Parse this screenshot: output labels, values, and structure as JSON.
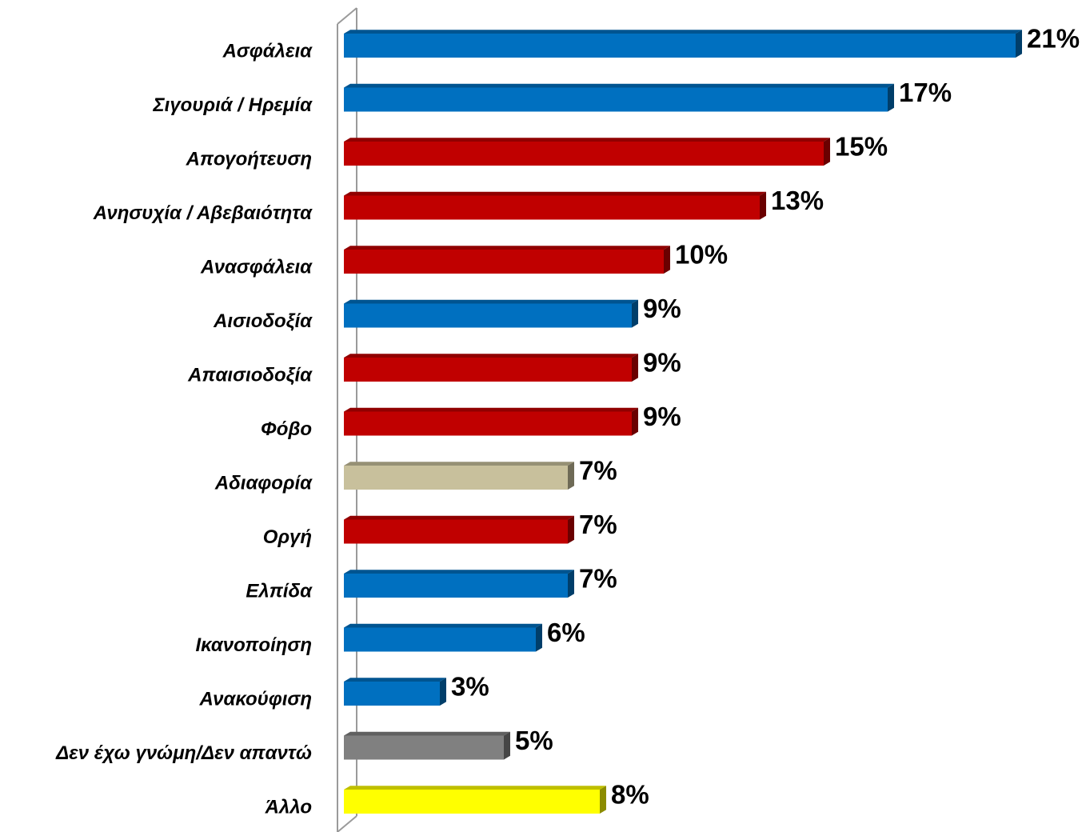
{
  "chart_data": {
    "type": "bar",
    "orientation": "horizontal",
    "categories": [
      "Ασφάλεια",
      "Σιγουριά / Ηρεμία",
      "Απογοήτευση",
      "Ανησυχία / Αβεβαιότητα",
      "Ανασφάλεια",
      "Αισιοδοξία",
      "Απαισιοδοξία",
      "Φόβο",
      "Αδιαφορία",
      "Οργή",
      "Ελπίδα",
      "Ικανοποίηση",
      "Ανακούφιση",
      "Δεν έχω γνώμη/Δεν απαντώ",
      "Άλλο"
    ],
    "values": [
      21,
      17,
      15,
      13,
      10,
      9,
      9,
      9,
      7,
      7,
      7,
      6,
      3,
      5,
      8
    ],
    "value_labels": [
      "21%",
      "17%",
      "15%",
      "13%",
      "10%",
      "9%",
      "9%",
      "9%",
      "7%",
      "7%",
      "7%",
      "6%",
      "3%",
      "5%",
      "8%"
    ],
    "colors": [
      "#0070c0",
      "#0070c0",
      "#c00000",
      "#c00000",
      "#c00000",
      "#0070c0",
      "#c00000",
      "#c00000",
      "#c8c09c",
      "#c00000",
      "#0070c0",
      "#0070c0",
      "#0070c0",
      "#808080",
      "#ffff00"
    ],
    "xlim": [
      0,
      22
    ]
  }
}
